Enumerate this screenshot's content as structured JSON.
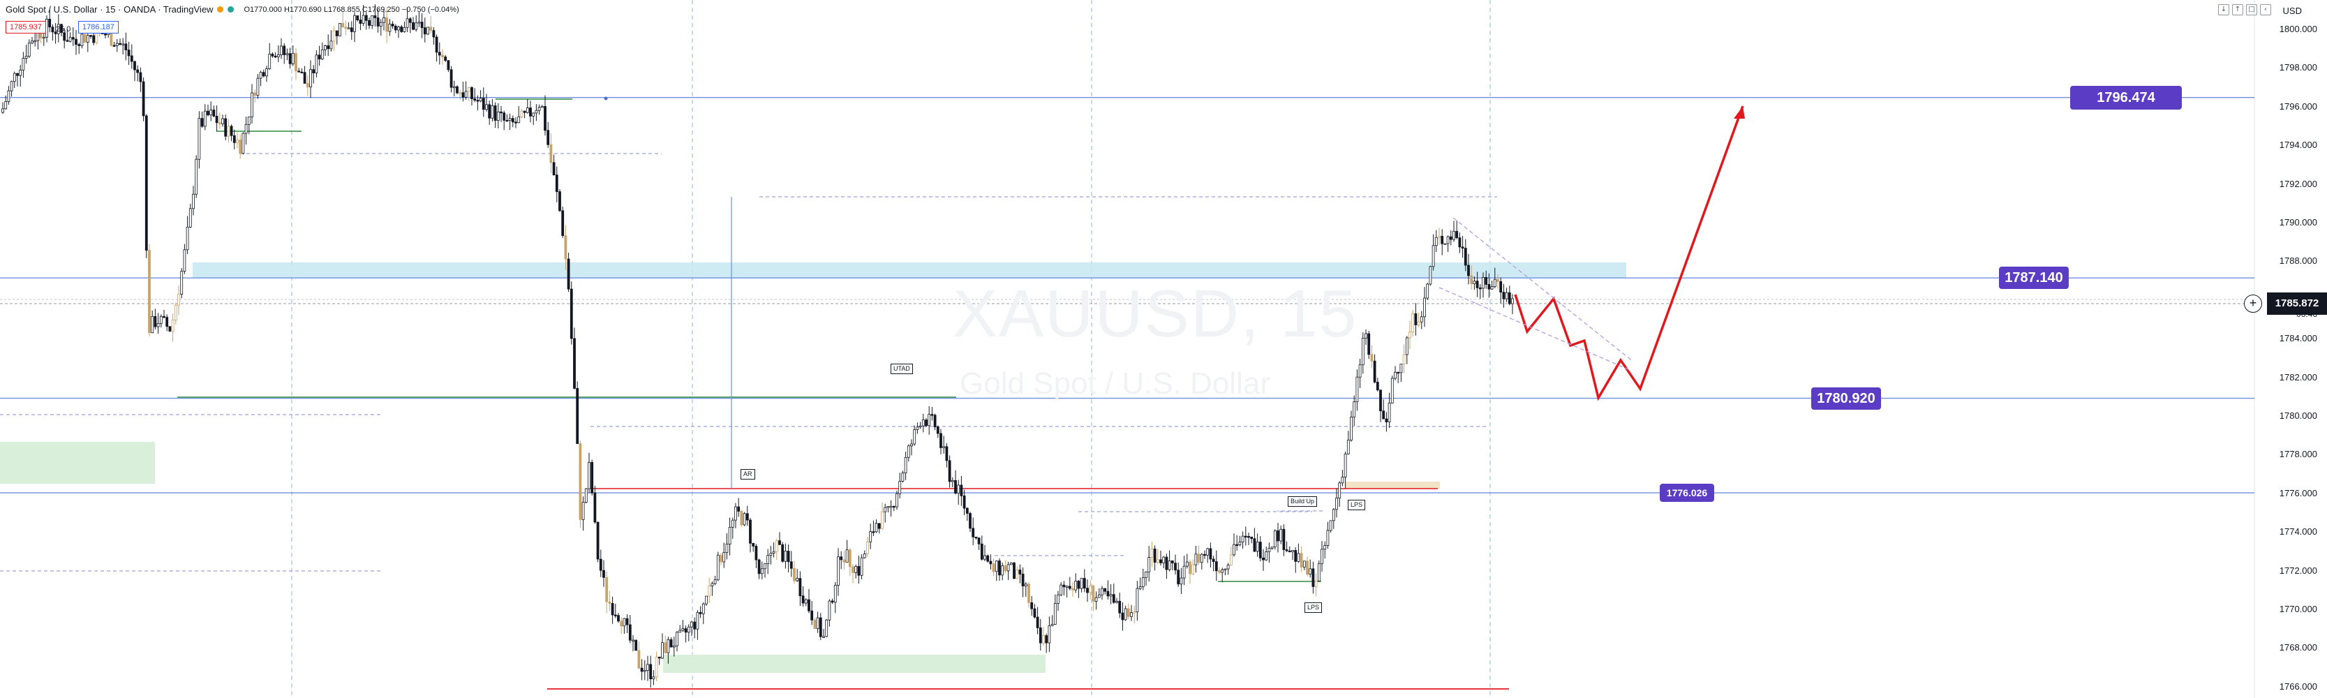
{
  "header": {
    "symbol": "Gold Spot / U.S. Dollar · 15 · OANDA · TradingView",
    "ohlc": {
      "o": "O1770.000",
      "h": "H1770.690",
      "l": "L1768.855",
      "c": "C1769.250",
      "chg": "−0.750 (−0.04%)"
    },
    "bid": "1785.937",
    "ask": "1786.187",
    "spread": "25.0",
    "status_colors": {
      "orange": "#ff9800",
      "teal": "#26a69a"
    }
  },
  "toolbar": {
    "icons": [
      "down-arrow-icon",
      "up-arrow-icon",
      "maximize-icon",
      "collapse-icon"
    ]
  },
  "currency": "USD",
  "watermark": {
    "title": "XAUUSD, 15",
    "subtitle": "Gold Spot / U.S. Dollar"
  },
  "price_axis": {
    "ticks": [
      "1800.000",
      "1798.000",
      "1796.000",
      "1794.000",
      "1792.000",
      "1790.000",
      "1788.000",
      "1786.000",
      "1784.000",
      "1782.000",
      "1780.000",
      "1778.000",
      "1776.000",
      "1774.000",
      "1772.000",
      "1770.000",
      "1768.000",
      "1766.000"
    ]
  },
  "current_price": {
    "label": "1785.872",
    "countdown": "06:46"
  },
  "level_tags": [
    {
      "label": "1796.474",
      "price": 1796.474
    },
    {
      "label": "1787.140",
      "price": 1787.14
    },
    {
      "label": "1780.920",
      "price": 1780.92
    },
    {
      "label": "1776.026",
      "price": 1776.026
    }
  ],
  "annotations": {
    "utad": "UTAD",
    "ar": "AR",
    "build_up": "Build Up",
    "lps1": "LPS",
    "lps2": "LPS"
  },
  "colors": {
    "up": "#131722",
    "down": "#131722",
    "wick_alt": "#c8a36a",
    "level_line": "#4a6fd1",
    "tag": "#5b3cc4",
    "arrow": "#e0191f",
    "zone_blue": "#c5e7f2",
    "zone_green": "#d9efd9"
  }
}
